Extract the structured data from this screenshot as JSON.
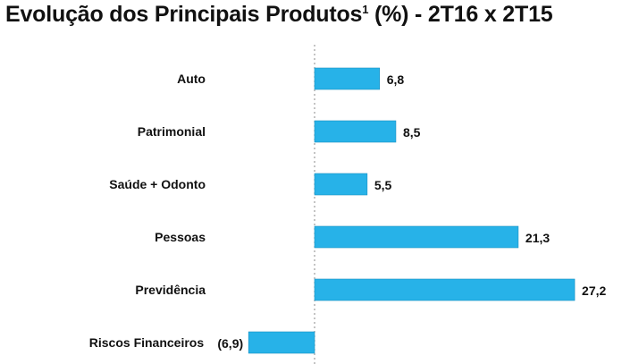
{
  "title": {
    "main": "Evolução dos Principais Produtos",
    "superscript": "1",
    "suffix": " (%) - 2T16 x 2T15"
  },
  "chart_data": {
    "type": "bar",
    "orientation": "horizontal",
    "title": "Evolução dos Principais Produtos¹ (%) - 2T16 x 2T15",
    "categories": [
      "Auto",
      "Patrimonial",
      "Saúde + Odonto",
      "Pessoas",
      "Previdência",
      "Riscos Financeiros"
    ],
    "values": [
      6.8,
      8.5,
      5.5,
      21.3,
      27.2,
      -6.9
    ],
    "value_labels": [
      "6,8",
      "8,5",
      "5,5",
      "21,3",
      "27,2",
      "(6,9)"
    ],
    "bar_color": "#27b2e8",
    "xlabel": "",
    "ylabel": "",
    "grid": false,
    "legend": "none"
  }
}
